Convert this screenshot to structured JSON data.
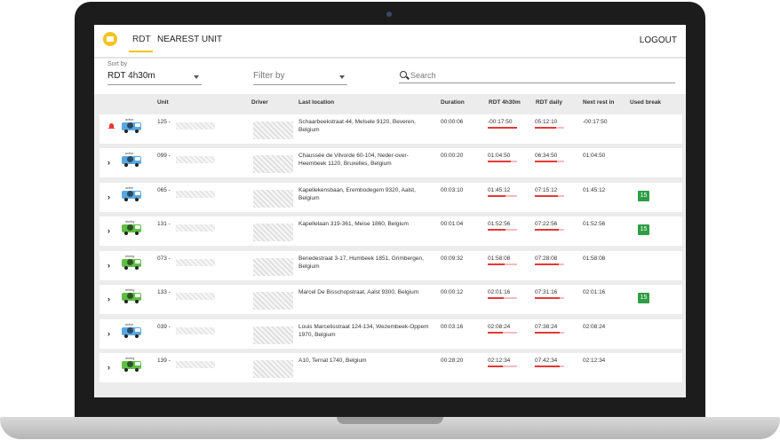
{
  "nav": {
    "tabs": [
      {
        "label": "RDT",
        "active": true
      },
      {
        "label": "NEAREST UNIT",
        "active": false
      }
    ],
    "logout_label": "LOGOUT"
  },
  "filters": {
    "sort_label": "Sort by",
    "sort_value": "RDT 4h30m",
    "filter_placeholder": "Filter by",
    "search_placeholder": "Search"
  },
  "table": {
    "headers": [
      "Unit",
      "Driver",
      "Last location",
      "Duration",
      "RDT 4h30m",
      "RDT daily",
      "Next rest in",
      "Used break"
    ],
    "rows": [
      {
        "icon": "bell-icon",
        "van_tag": "active",
        "van_color": "#5aa7df",
        "unit": "125 -",
        "location": "Schaarbeekstraat 44, Melsele 9120, Beveren, Belgium",
        "duration": "00:00:06",
        "rdt430": "-00:17:50",
        "rdt430_fill": 1.0,
        "rdt_daily": "05:12:10",
        "rdt_daily_fill": 0.72,
        "next_rest": "-00:17:50",
        "used_break": ""
      },
      {
        "icon": "chevron-right-icon",
        "van_tag": "active",
        "van_color": "#5aa7df",
        "unit": "099 -",
        "location": "Chaussée de Vilvorde 60-104, Neder-over-Heembeek 1120, Bruxelles, Belgium",
        "duration": "00:00:20",
        "rdt430": "01:04:50",
        "rdt430_fill": 0.78,
        "rdt_daily": "06:34:50",
        "rdt_daily_fill": 0.75,
        "next_rest": "01:04:50",
        "used_break": ""
      },
      {
        "icon": "chevron-right-icon",
        "van_tag": "active",
        "van_color": "#5aa7df",
        "unit": "065 -",
        "location": "Kapellekensbaan, Erembodegem 9320, Aalst, Belgium",
        "duration": "00:03:10",
        "rdt430": "01:45:12",
        "rdt430_fill": 0.62,
        "rdt_daily": "07:15:12",
        "rdt_daily_fill": 0.8,
        "next_rest": "01:45:12",
        "used_break": "15"
      },
      {
        "icon": "chevron-right-icon",
        "van_tag": "driving",
        "van_color": "#5fbe45",
        "unit": "131 -",
        "location": "Kapellelaan 319-361, Meise 1860, Belgium",
        "duration": "00:01:04",
        "rdt430": "01:52:56",
        "rdt430_fill": 0.6,
        "rdt_daily": "07:22:56",
        "rdt_daily_fill": 0.82,
        "next_rest": "01:52:56",
        "used_break": "15"
      },
      {
        "icon": "chevron-right-icon",
        "van_tag": "driving",
        "van_color": "#5fbe45",
        "unit": "073 -",
        "location": "Benedestraat 3-17, Humbeek 1851, Grimbergen, Belgium",
        "duration": "00:09:32",
        "rdt430": "01:58:08",
        "rdt430_fill": 0.58,
        "rdt_daily": "07:28:08",
        "rdt_daily_fill": 0.82,
        "next_rest": "01:58:08",
        "used_break": ""
      },
      {
        "icon": "chevron-right-icon",
        "van_tag": "driving",
        "van_color": "#5fbe45",
        "unit": "133 -",
        "location": "Marcel De Bisschopstraat, Aalst 9300, Belgium",
        "duration": "00:00:12",
        "rdt430": "02:01:16",
        "rdt430_fill": 0.55,
        "rdt_daily": "07:31:16",
        "rdt_daily_fill": 0.84,
        "next_rest": "02:01:16",
        "used_break": "15"
      },
      {
        "icon": "chevron-right-icon",
        "van_tag": "active",
        "van_color": "#5aa7df",
        "unit": "039 -",
        "location": "Louis Marcelisstraat 124-134, Wezembeek-Oppem 1970, Belgium",
        "duration": "00:03:16",
        "rdt430": "02:08:24",
        "rdt430_fill": 0.53,
        "rdt_daily": "07:38:24",
        "rdt_daily_fill": 0.85,
        "next_rest": "02:08:24",
        "used_break": ""
      },
      {
        "icon": "chevron-right-icon",
        "van_tag": "driving",
        "van_color": "#5fbe45",
        "unit": "139 -",
        "location": "A10, Ternat 1740, Belgium",
        "duration": "00:28:20",
        "rdt430": "02:12:34",
        "rdt430_fill": 0.52,
        "rdt_daily": "07:42:34",
        "rdt_daily_fill": 0.86,
        "next_rest": "02:12:34",
        "used_break": ""
      }
    ]
  },
  "colors": {
    "accent": "#f4c21f",
    "bar_fill": "#e53935",
    "bar_track": "#f4bcbc",
    "break_badge": "#2e9e44"
  }
}
